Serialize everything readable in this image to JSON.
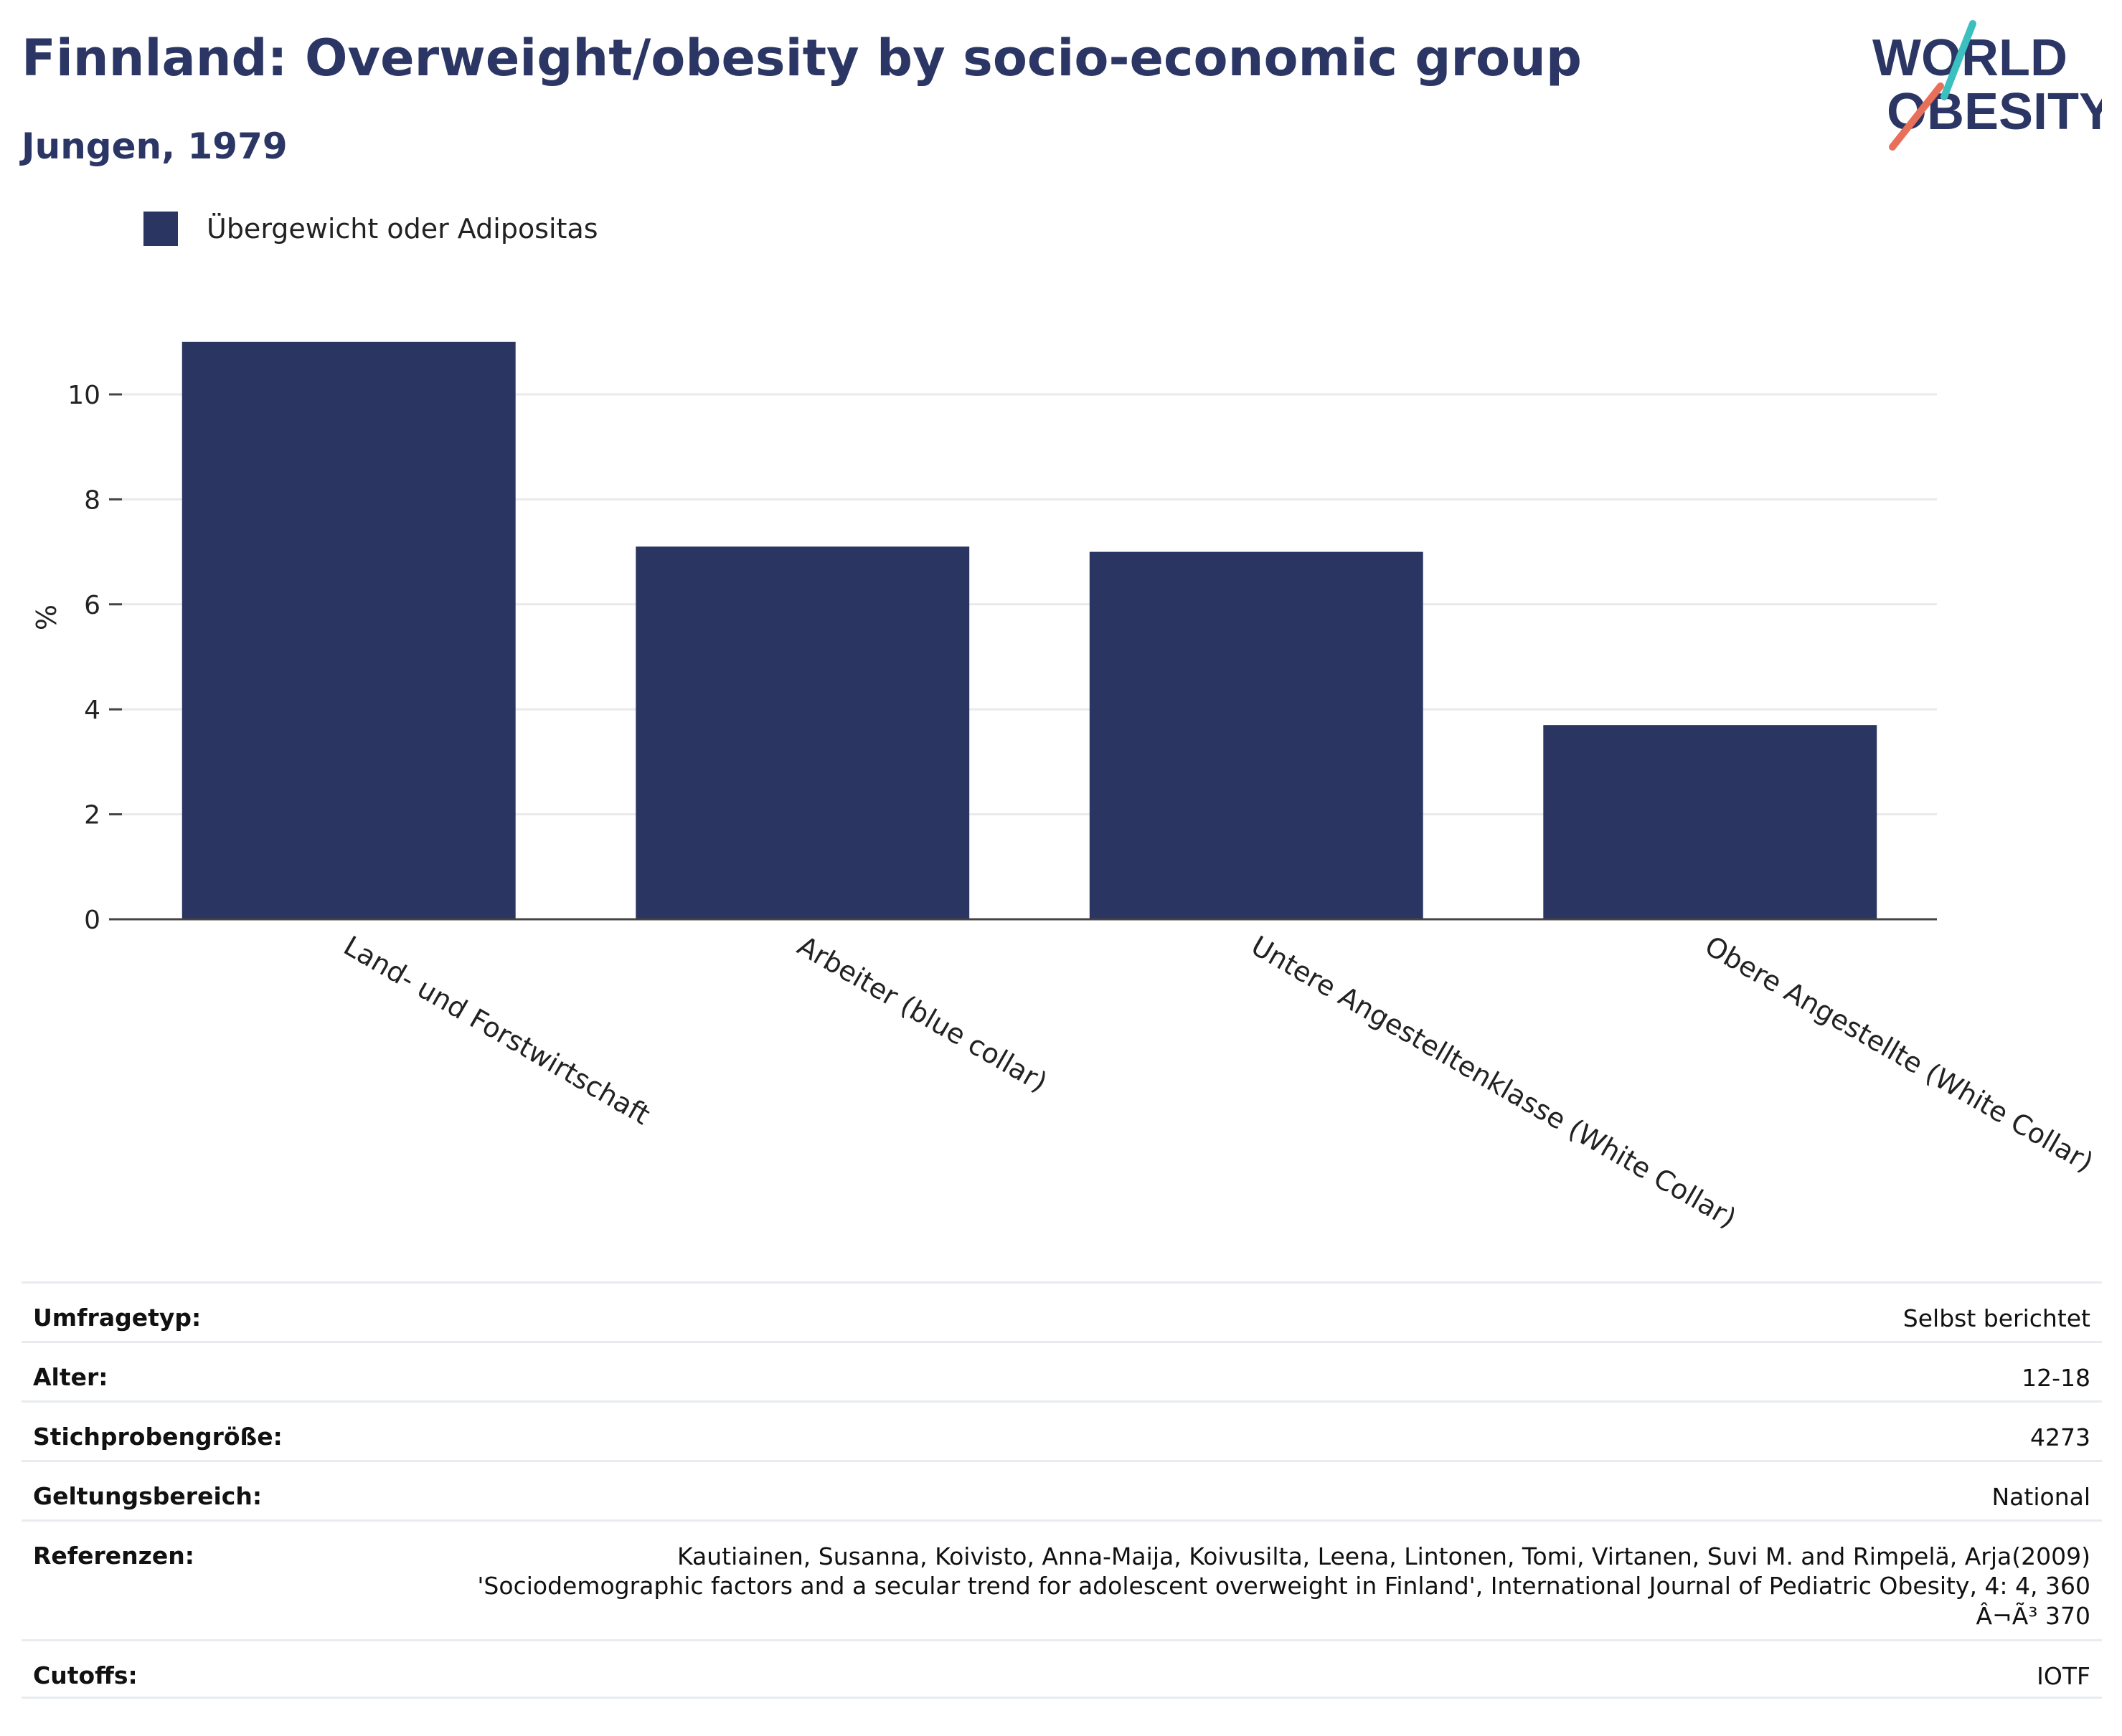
{
  "header": {
    "title": "Finnland: Overweight/obesity by socio-economic group",
    "subtitle": "Jungen, 1979"
  },
  "logo": {
    "line1": "WORLD",
    "line2": "OBESITY",
    "colors": {
      "navy": "#2b3664",
      "teal": "#3bbfbf",
      "coral": "#e8705a"
    }
  },
  "legend": {
    "label": "Übergewicht oder Adipositas",
    "color": "#2a3561"
  },
  "chart_data": {
    "type": "bar",
    "categories": [
      "Land- und Forstwirtschaft",
      "Arbeiter (blue collar)",
      "Untere Angestelltenklasse (White Collar)",
      "Obere Angestellte (White Collar)"
    ],
    "series": [
      {
        "name": "Übergewicht oder Adipositas",
        "values": [
          11.0,
          7.1,
          7.0,
          3.7
        ],
        "color": "#2a3561"
      }
    ],
    "ylabel": "%",
    "ylim": [
      0,
      11.5
    ],
    "yticks": [
      0,
      2,
      4,
      6,
      8,
      10
    ],
    "grid": true,
    "legend_position": "top-left"
  },
  "meta": [
    {
      "label": "Umfragetyp:",
      "value": [
        "Selbst berichtet"
      ]
    },
    {
      "label": "Alter:",
      "value": [
        "12-18"
      ]
    },
    {
      "label": "Stichprobengröße:",
      "value": [
        "4273"
      ]
    },
    {
      "label": "Geltungsbereich:",
      "value": [
        "National"
      ]
    },
    {
      "label": "Referenzen:",
      "value": [
        "Kautiainen, Susanna, Koivisto, Anna-Maija, Koivusilta, Leena, Lintonen, Tomi, Virtanen, Suvi M. and Rimpelä, Arja(2009)",
        "'Sociodemographic factors and a secular trend for adolescent overweight in Finland', International Journal of Pediatric Obesity, 4: 4, 360",
        "Â¬Ã³ 370"
      ]
    },
    {
      "label": "Cutoffs:",
      "value": [
        "IOTF"
      ]
    }
  ]
}
